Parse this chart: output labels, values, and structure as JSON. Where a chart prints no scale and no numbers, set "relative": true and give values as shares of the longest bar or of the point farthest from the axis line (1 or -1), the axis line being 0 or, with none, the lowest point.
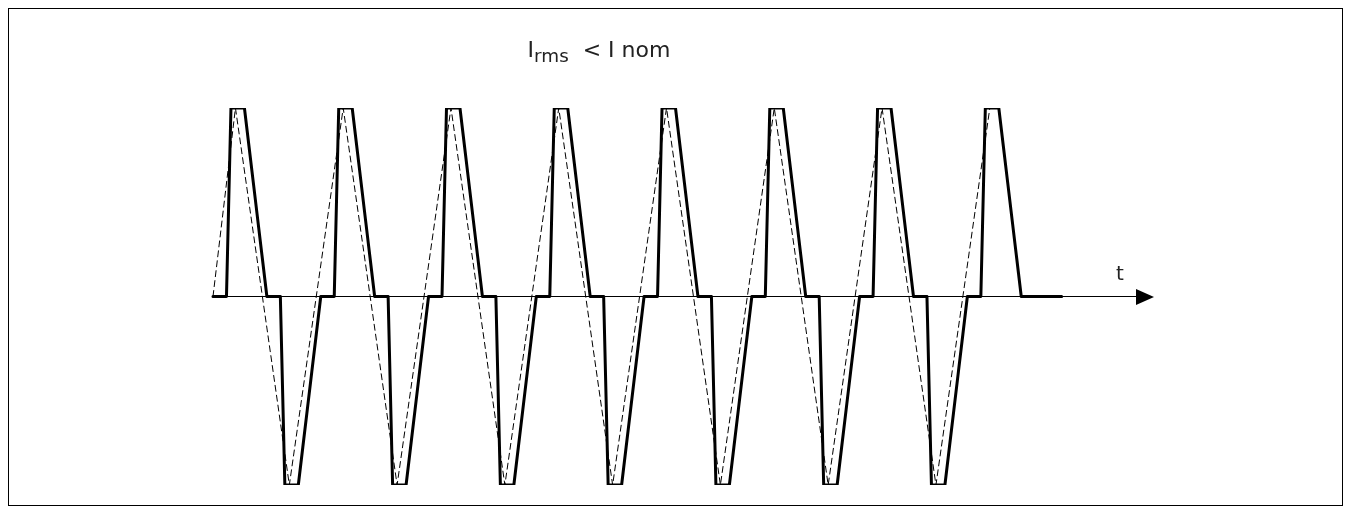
{
  "chart_data": {
    "type": "line",
    "title": "I$_{rms}$  < I nom",
    "xlabel": "t",
    "relative": true,
    "tick_labels": false,
    "grid": false,
    "legend": false,
    "categories": [
      null,
      null,
      null,
      null,
      null,
      null,
      null,
      null,
      null,
      null,
      null,
      null,
      null,
      null,
      null,
      null,
      null,
      null,
      null,
      null,
      null,
      null,
      null,
      null,
      null,
      null,
      null,
      null,
      null,
      null,
      null,
      null,
      null,
      null,
      null,
      null,
      null,
      null,
      null,
      null,
      null,
      null,
      null,
      null,
      null,
      null,
      null,
      null,
      null,
      null,
      null,
      null,
      null,
      null,
      null,
      null,
      null,
      null,
      null,
      null,
      null,
      null,
      null,
      null,
      null,
      null,
      null,
      null,
      null,
      null,
      null,
      null,
      null,
      null,
      null,
      null,
      null,
      null,
      null,
      null,
      null,
      null,
      null,
      null,
      null,
      null,
      null,
      null,
      null,
      null,
      null,
      null,
      null,
      null,
      null,
      null,
      null,
      null,
      null,
      null,
      null,
      null,
      null,
      null,
      null,
      null,
      null,
      null,
      null,
      null,
      null,
      null,
      null,
      null,
      null,
      null,
      null,
      null,
      null,
      null,
      null,
      null,
      null,
      null,
      null,
      null,
      null,
      null,
      null,
      null,
      null,
      null,
      null,
      null,
      null,
      null,
      null,
      null,
      null,
      null,
      null,
      null,
      null,
      null,
      null,
      null,
      null,
      null,
      null,
      null,
      null,
      null,
      null,
      null,
      null,
      null,
      null,
      null,
      null,
      null,
      null,
      null,
      null,
      null,
      null,
      null,
      null,
      null,
      null,
      null,
      null,
      null,
      null,
      null,
      null,
      null,
      null,
      null,
      null,
      null,
      null,
      null,
      null,
      null,
      null,
      null,
      null,
      null,
      null,
      null,
      null,
      null,
      null,
      null,
      null,
      null,
      null,
      null,
      null,
      null,
      null,
      null,
      null,
      null,
      null,
      null,
      null
    ],
    "series": [
      {
        "color": "#000000",
        "line_style": "solid",
        "values": [
          0,
          0,
          0,
          0,
          1,
          1,
          1,
          1,
          0.8,
          0.6,
          0.4,
          0.2,
          0,
          0,
          0,
          0,
          -1,
          -1,
          -1,
          -1,
          -0.8,
          -0.6,
          -0.4,
          -0.2,
          0,
          0,
          0,
          0,
          1,
          1,
          1,
          1,
          0.8,
          0.6,
          0.4,
          0.2,
          0,
          0,
          0,
          0,
          -1,
          -1,
          -1,
          -1,
          -0.8,
          -0.6,
          -0.4,
          -0.2,
          0,
          0,
          0,
          0,
          1,
          1,
          1,
          1,
          0.8,
          0.6,
          0.4,
          0.2,
          0,
          0,
          0,
          0,
          -1,
          -1,
          -1,
          -1,
          -0.8,
          -0.6,
          -0.4,
          -0.2,
          0,
          0,
          0,
          0,
          1,
          1,
          1,
          1,
          0.8,
          0.6,
          0.4,
          0.2,
          0,
          0,
          0,
          0,
          -1,
          -1,
          -1,
          -1,
          -0.8,
          -0.6,
          -0.4,
          -0.2,
          0,
          0,
          0,
          0,
          1,
          1,
          1,
          1,
          0.8,
          0.6,
          0.4,
          0.2,
          0,
          0,
          0,
          0,
          -1,
          -1,
          -1,
          -1,
          -0.8,
          -0.6,
          -0.4,
          -0.2,
          0,
          0,
          0,
          0,
          1,
          1,
          1,
          1,
          0.8,
          0.6,
          0.4,
          0.2,
          0,
          0,
          0,
          0,
          -1,
          -1,
          -1,
          -1,
          -0.8,
          -0.6,
          -0.4,
          -0.2,
          0,
          0,
          0,
          0,
          1,
          1,
          1,
          1,
          0.8,
          0.6,
          0.4,
          0.2,
          0,
          0,
          0,
          0,
          -1,
          -1,
          -1,
          -1,
          -0.8,
          -0.6,
          -0.4,
          -0.2,
          0,
          0,
          0,
          0,
          1,
          1,
          1,
          1,
          0.8,
          0.6,
          0.4,
          0.2,
          0,
          0,
          0,
          0,
          0,
          0,
          0,
          0,
          0,
          0,
          null,
          null,
          null,
          null,
          null,
          null,
          null,
          null,
          null,
          null,
          null,
          null,
          null,
          null,
          null,
          null,
          null
        ]
      },
      {
        "color": "#000000",
        "line_style": "dashed",
        "values": [
          0,
          null,
          null,
          null,
          null,
          1,
          null,
          null,
          null,
          null,
          null,
          null,
          null,
          null,
          null,
          null,
          null,
          -1,
          null,
          null,
          null,
          null,
          null,
          null,
          null,
          null,
          null,
          null,
          null,
          1,
          null,
          null,
          null,
          null,
          null,
          null,
          null,
          null,
          null,
          null,
          null,
          -1,
          null,
          null,
          null,
          null,
          null,
          null,
          null,
          null,
          null,
          null,
          null,
          1,
          null,
          null,
          null,
          null,
          null,
          null,
          null,
          null,
          null,
          null,
          null,
          -1,
          null,
          null,
          null,
          null,
          null,
          null,
          null,
          null,
          null,
          null,
          null,
          1,
          null,
          null,
          null,
          null,
          null,
          null,
          null,
          null,
          null,
          null,
          null,
          -1,
          null,
          null,
          null,
          null,
          null,
          null,
          null,
          null,
          null,
          null,
          null,
          1,
          null,
          null,
          null,
          null,
          null,
          null,
          null,
          null,
          null,
          null,
          null,
          -1,
          null,
          null,
          null,
          null,
          null,
          null,
          null,
          null,
          null,
          null,
          null,
          1,
          null,
          null,
          null,
          null,
          null,
          null,
          null,
          null,
          null,
          null,
          null,
          -1,
          null,
          null,
          null,
          null,
          null,
          null,
          null,
          null,
          null,
          null,
          null,
          1,
          null,
          null,
          null,
          null,
          null,
          null,
          null,
          null,
          null,
          null,
          null,
          -1,
          null,
          null,
          null,
          null,
          null,
          null,
          null,
          null,
          null,
          null,
          null,
          1,
          null,
          null,
          null,
          null,
          null,
          null,
          null,
          null,
          null,
          null,
          null,
          null,
          null,
          null,
          null,
          null,
          null,
          null,
          null,
          null,
          null,
          null,
          null,
          null,
          null,
          null,
          null,
          null,
          null,
          null,
          null,
          null,
          null
        ]
      }
    ]
  }
}
